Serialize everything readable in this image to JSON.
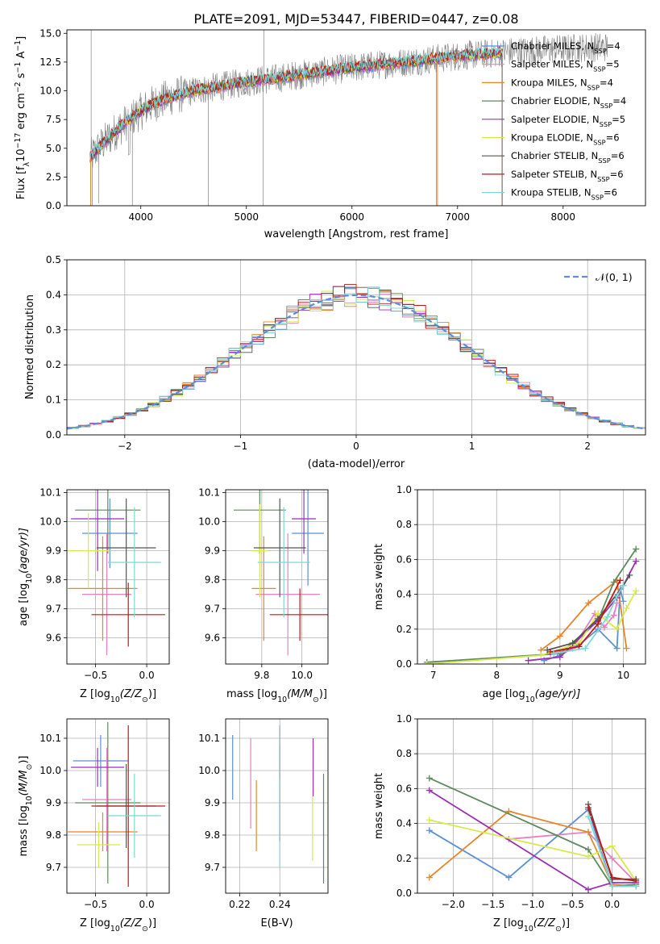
{
  "figure_title": "PLATE=2091, MJD=53447, FIBERID=0447, z=0.08",
  "colors": {
    "s0": "#5b8fd6",
    "s1": "#e87fbf",
    "s2": "#e8852a",
    "s3": "#5e8a5e",
    "s4": "#9b30b8",
    "s5": "#d6ea4a",
    "s6": "#555555",
    "s7": "#c01818",
    "s8": "#7ed8d8",
    "data": "#808080",
    "normal": "#5b8fd6"
  },
  "chart_data": [
    {
      "type": "line",
      "id": "spectrum",
      "xlabel": "wavelength [Angstrom, rest frame]",
      "ylabel": "Flux [f",
      "ylabel_parts": [
        "Flux [f",
        "λ",
        "10",
        "−17",
        " erg cm",
        "−2",
        " s",
        "−1",
        " A",
        "−1",
        "]"
      ],
      "xlim": [
        3300,
        8780
      ],
      "ylim": [
        0,
        15.3
      ],
      "xticks": [
        4000,
        5000,
        6000,
        7000,
        8000
      ],
      "yticks": [
        0.0,
        2.5,
        5.0,
        7.5,
        10.0,
        12.5,
        15.0
      ],
      "ytick_labels": [
        "0.0",
        "2.5",
        "5.0",
        "7.5",
        "10.0",
        "12.5",
        "15.0"
      ],
      "legend_placement": "upper-right",
      "legend": [
        {
          "prefix": "Chabrier MILES, N",
          "sub": "SSP",
          "suffix": "=4",
          "color_key": "s0"
        },
        {
          "prefix": "Salpeter MILES, N",
          "sub": "SSP",
          "suffix": "=5",
          "color_key": "s1"
        },
        {
          "prefix": "Kroupa MILES, N",
          "sub": "SSP",
          "suffix": "=4",
          "color_key": "s2"
        },
        {
          "prefix": "Chabrier ELODIE, N",
          "sub": "SSP",
          "suffix": "=4",
          "color_key": "s3"
        },
        {
          "prefix": "Salpeter ELODIE, N",
          "sub": "SSP",
          "suffix": "=5",
          "color_key": "s4"
        },
        {
          "prefix": "Kroupa ELODIE, N",
          "sub": "SSP",
          "suffix": "=6",
          "color_key": "s5"
        },
        {
          "prefix": "Chabrier STELIB, N",
          "sub": "SSP",
          "suffix": "=6",
          "color_key": "s6"
        },
        {
          "prefix": "Salpeter STELIB, N",
          "sub": "SSP",
          "suffix": "=6",
          "color_key": "s7"
        },
        {
          "prefix": "Kroupa STELIB, N",
          "sub": "SSP",
          "suffix": "=6",
          "color_key": "s8"
        }
      ],
      "continuum_x": [
        3520,
        3650,
        3800,
        3950,
        4100,
        4300,
        4500,
        4700,
        4900,
        5100,
        5300,
        5500,
        5700,
        5900,
        6100,
        6300,
        6500,
        6700,
        6900,
        7100,
        7300,
        7500,
        7700,
        7900,
        8100,
        8300
      ],
      "continuum_y": [
        4.2,
        5.5,
        6.8,
        7.9,
        8.8,
        9.5,
        10.0,
        10.3,
        10.6,
        10.9,
        11.1,
        11.4,
        11.6,
        11.9,
        12.1,
        12.3,
        12.5,
        12.7,
        12.9,
        13.1,
        13.2,
        13.4,
        13.5,
        13.6,
        13.7,
        13.8
      ]
    },
    {
      "type": "line",
      "id": "residuals",
      "xlabel": "(data-model)/error",
      "ylabel": "Normed distribution",
      "xlim": [
        -2.5,
        2.5
      ],
      "ylim": [
        0,
        0.5
      ],
      "xticks": [
        -2,
        -1,
        0,
        1,
        2
      ],
      "xtick_labels": [
        "−2",
        "−1",
        "0",
        "1",
        "2"
      ],
      "yticks": [
        0.0,
        0.1,
        0.2,
        0.3,
        0.4,
        0.5
      ],
      "ytick_labels": [
        "0.0",
        "0.1",
        "0.2",
        "0.3",
        "0.4",
        "0.5"
      ],
      "grid": true,
      "legend_placement": "upper-right",
      "legend_label": "𝒩(0, 1)"
    },
    {
      "type": "scatter",
      "id": "age-vs-Z",
      "xlabel": "Z [log",
      "xlabel_parts": [
        "Z [log",
        "10",
        "(Z/Z",
        "⊙",
        ")]"
      ],
      "ylabel_parts": [
        "age  [log",
        "10",
        "(age/yr)]"
      ],
      "xlim": [
        -0.78,
        0.22
      ],
      "ylim": [
        9.51,
        10.11
      ],
      "xticks": [
        -0.5,
        0.0
      ],
      "xtick_labels": [
        "−0.5",
        "0.0"
      ],
      "yticks": [
        9.6,
        9.7,
        9.8,
        9.9,
        10.0,
        10.1
      ],
      "ytick_labels": [
        "9.6",
        "9.7",
        "9.8",
        "9.9",
        "10.0",
        "10.1"
      ],
      "grid": true,
      "points": [
        {
          "c": "s0",
          "x": -0.36,
          "y": 9.96,
          "xe": 0.27,
          "ye": 0.12
        },
        {
          "c": "s1",
          "x": -0.39,
          "y": 9.75,
          "xe": 0.24,
          "ye": 0.21
        },
        {
          "c": "s2",
          "x": -0.43,
          "y": 9.77,
          "xe": 0.34,
          "ye": 0.18
        },
        {
          "c": "s3",
          "x": -0.38,
          "y": 10.04,
          "xe": 0.32,
          "ye": 0.15
        },
        {
          "c": "s4",
          "x": -0.48,
          "y": 10.01,
          "xe": 0.26,
          "ye": 0.18
        },
        {
          "c": "s5",
          "x": -0.57,
          "y": 9.9,
          "xe": 0.21,
          "ye": 0.13
        },
        {
          "c": "s6",
          "x": -0.2,
          "y": 9.91,
          "xe": 0.29,
          "ye": 0.17
        },
        {
          "c": "s7",
          "x": -0.18,
          "y": 9.68,
          "xe": 0.36,
          "ye": 0.11
        },
        {
          "c": "s8",
          "x": -0.12,
          "y": 9.86,
          "xe": 0.26,
          "ye": 0.19
        }
      ]
    },
    {
      "type": "scatter",
      "id": "age-vs-mass",
      "xlabel": "mass [log",
      "xlabel_parts": [
        "mass [log",
        "10",
        "(M/M",
        "⊙",
        ")]"
      ],
      "xlim": [
        9.62,
        10.13
      ],
      "ylim": [
        9.51,
        10.11
      ],
      "xticks": [
        9.8,
        10.0
      ],
      "xtick_labels": [
        "9.8",
        "10.0"
      ],
      "yticks": [
        9.6,
        9.7,
        9.8,
        9.9,
        10.0,
        10.1
      ],
      "ytick_labels": [
        "9.6",
        "9.7",
        "9.8",
        "9.9",
        "10.0",
        "10.1"
      ],
      "grid": true,
      "points": [
        {
          "c": "s0",
          "x": 10.03,
          "y": 9.96,
          "xe": 0.08,
          "ye": 0.18
        },
        {
          "c": "s1",
          "x": 9.93,
          "y": 9.75,
          "xe": 0.16,
          "ye": 0.21
        },
        {
          "c": "s2",
          "x": 9.81,
          "y": 9.77,
          "xe": 0.06,
          "ye": 0.18
        },
        {
          "c": "s3",
          "x": 9.79,
          "y": 10.04,
          "xe": 0.13,
          "ye": 0.15
        },
        {
          "c": "s4",
          "x": 10.01,
          "y": 10.01,
          "xe": 0.06,
          "ye": 0.12
        },
        {
          "c": "s5",
          "x": 9.79,
          "y": 9.9,
          "xe": 0.04,
          "ye": 0.16
        },
        {
          "c": "s6",
          "x": 9.89,
          "y": 9.91,
          "xe": 0.13,
          "ye": 0.17
        },
        {
          "c": "s7",
          "x": 9.99,
          "y": 9.68,
          "xe": 0.15,
          "ye": 0.09
        },
        {
          "c": "s8",
          "x": 9.91,
          "y": 9.86,
          "xe": 0.13,
          "ye": 0.19
        }
      ]
    },
    {
      "type": "line",
      "id": "massweight-vs-age",
      "xlabel_parts": [
        "age  [log",
        "10",
        "(age/yr)]"
      ],
      "ylabel": "mass weight",
      "xlim": [
        6.75,
        10.35
      ],
      "ylim": [
        0,
        1.0
      ],
      "xticks": [
        7,
        8,
        9,
        10
      ],
      "xtick_labels": [
        "7",
        "8",
        "9",
        "10"
      ],
      "yticks": [
        0.0,
        0.2,
        0.4,
        0.6,
        0.8,
        1.0
      ],
      "ytick_labels": [
        "0.0",
        "0.2",
        "0.4",
        "0.6",
        "0.8",
        "1.0"
      ],
      "grid": true,
      "series": [
        {
          "c": "s0",
          "x": [
            8.75,
            9.0,
            9.3,
            9.6,
            9.9,
            9.95,
            10.0
          ],
          "y": [
            0.02,
            0.05,
            0.11,
            0.2,
            0.09,
            0.43,
            0.36
          ]
        },
        {
          "c": "s1",
          "x": [
            8.85,
            9.2,
            9.55,
            9.7,
            9.85,
            9.9
          ],
          "y": [
            0.06,
            0.09,
            0.29,
            0.21,
            0.28,
            0.35
          ]
        },
        {
          "c": "s2",
          "x": [
            8.7,
            9.0,
            9.45,
            9.9,
            10.05
          ],
          "y": [
            0.08,
            0.16,
            0.35,
            0.48,
            0.09
          ]
        },
        {
          "c": "s3",
          "x": [
            6.9,
            9.0,
            9.6,
            9.85,
            10.2
          ],
          "y": [
            0.01,
            0.06,
            0.25,
            0.47,
            0.66
          ]
        },
        {
          "c": "s4",
          "x": [
            8.5,
            9.0,
            9.6,
            9.9,
            10.2
          ],
          "y": [
            0.02,
            0.04,
            0.25,
            0.38,
            0.59
          ]
        },
        {
          "c": "s5",
          "x": [
            6.9,
            8.7,
            9.3,
            9.6,
            9.9,
            10.05,
            10.2
          ],
          "y": [
            0.0,
            0.05,
            0.12,
            0.29,
            0.2,
            0.32,
            0.42
          ]
        },
        {
          "c": "s6",
          "x": [
            8.8,
            9.2,
            9.6,
            10.0,
            10.1
          ],
          "y": [
            0.08,
            0.12,
            0.26,
            0.45,
            0.51
          ]
        },
        {
          "c": "s7",
          "x": [
            8.85,
            9.3,
            9.6,
            9.95
          ],
          "y": [
            0.07,
            0.1,
            0.23,
            0.48
          ]
        },
        {
          "c": "s8",
          "x": [
            8.9,
            9.4,
            9.75,
            9.9,
            10.0
          ],
          "y": [
            0.06,
            0.09,
            0.27,
            0.39,
            0.45
          ]
        }
      ]
    },
    {
      "type": "scatter",
      "id": "mass-vs-Z",
      "xlabel_parts": [
        "Z [log",
        "10",
        "(Z/Z",
        "⊙",
        ")]"
      ],
      "ylabel_parts": [
        "mass [log",
        "10",
        "(M/M",
        "⊙",
        ")]"
      ],
      "xlim": [
        -0.78,
        0.22
      ],
      "ylim": [
        9.62,
        10.16
      ],
      "xticks": [
        -0.5,
        0.0
      ],
      "xtick_labels": [
        "−0.5",
        "0.0"
      ],
      "yticks": [
        9.7,
        9.8,
        9.9,
        10.0,
        10.1
      ],
      "ytick_labels": [
        "9.7",
        "9.8",
        "9.9",
        "10.0",
        "10.1"
      ],
      "grid": true,
      "points": [
        {
          "c": "s0",
          "x": -0.45,
          "y": 10.03,
          "xe": 0.27,
          "ye": 0.08
        },
        {
          "c": "s1",
          "x": -0.39,
          "y": 9.91,
          "xe": 0.24,
          "ye": 0.16
        },
        {
          "c": "s2",
          "x": -0.43,
          "y": 9.81,
          "xe": 0.34,
          "ye": 0.06
        },
        {
          "c": "s3",
          "x": -0.38,
          "y": 9.9,
          "xe": 0.32,
          "ye": 0.25
        },
        {
          "c": "s4",
          "x": -0.48,
          "y": 10.01,
          "xe": 0.26,
          "ye": 0.06
        },
        {
          "c": "s5",
          "x": -0.47,
          "y": 9.77,
          "xe": 0.21,
          "ye": 0.07
        },
        {
          "c": "s6",
          "x": -0.2,
          "y": 9.89,
          "xe": 0.29,
          "ye": 0.13
        },
        {
          "c": "s7",
          "x": -0.18,
          "y": 9.89,
          "xe": 0.36,
          "ye": 0.25
        },
        {
          "c": "s8",
          "x": -0.12,
          "y": 9.86,
          "xe": 0.26,
          "ye": 0.13
        }
      ]
    },
    {
      "type": "scatter",
      "id": "mass-vs-ebv",
      "xlabel": "E(B-V)",
      "xlim": [
        0.213,
        0.264
      ],
      "ylim": [
        9.62,
        10.16
      ],
      "xticks": [
        0.22,
        0.24
      ],
      "xtick_labels": [
        "0.22",
        "0.24"
      ],
      "yticks": [
        9.7,
        9.8,
        9.9,
        10.0,
        10.1
      ],
      "ytick_labels": [
        "9.7",
        "9.8",
        "9.9",
        "10.0",
        "10.1"
      ],
      "grid": true,
      "points": [
        {
          "c": "s0",
          "x": 0.2165,
          "y": 10.01,
          "ye": 0.1
        },
        {
          "c": "s1",
          "x": 0.2255,
          "y": 9.96,
          "ye": 0.14
        },
        {
          "c": "s2",
          "x": 0.2283,
          "y": 9.86,
          "ye": 0.11
        },
        {
          "c": "s3",
          "x": 0.2618,
          "y": 9.82,
          "ye": 0.17
        },
        {
          "c": "s4",
          "x": 0.2566,
          "y": 10.01,
          "ye": 0.09
        },
        {
          "c": "s5",
          "x": 0.2563,
          "y": 9.82,
          "ye": 0.1
        },
        {
          "c": "s6",
          "x": 0.24,
          "y": 9.93,
          "ye": 0.15
        },
        {
          "c": "s7",
          "x": 0.24,
          "y": 10.06,
          "ye": 0.08
        },
        {
          "c": "s8",
          "x": 0.24,
          "y": 9.92,
          "ye": 0.22
        }
      ]
    },
    {
      "type": "line",
      "id": "massweight-vs-Z",
      "xlabel_parts": [
        "Z [log",
        "10",
        "(Z/Z",
        "⊙",
        ")]"
      ],
      "ylabel": "mass weight",
      "xlim": [
        -2.45,
        0.42
      ],
      "ylim": [
        0,
        1.0
      ],
      "xticks": [
        -2.0,
        -1.5,
        -1.0,
        -0.5,
        0.0
      ],
      "xtick_labels": [
        "−2.0",
        "−1.5",
        "−1.0",
        "−0.5",
        "0.0"
      ],
      "yticks": [
        0.0,
        0.2,
        0.4,
        0.6,
        0.8,
        1.0
      ],
      "ytick_labels": [
        "0.0",
        "0.2",
        "0.4",
        "0.6",
        "0.8",
        "1.0"
      ],
      "grid": true,
      "series": [
        {
          "c": "s0",
          "x": [
            -2.3,
            -1.3,
            -0.3,
            0.0,
            0.3
          ],
          "y": [
            0.36,
            0.09,
            0.48,
            0.04,
            0.04
          ]
        },
        {
          "c": "s1",
          "x": [
            -1.3,
            -0.3,
            0.0,
            0.3
          ],
          "y": [
            0.31,
            0.35,
            0.2,
            0.06
          ]
        },
        {
          "c": "s2",
          "x": [
            -2.3,
            -1.3,
            -0.3,
            0.0,
            0.3
          ],
          "y": [
            0.09,
            0.47,
            0.35,
            0.05,
            0.04
          ]
        },
        {
          "c": "s3",
          "x": [
            -2.3,
            -0.3,
            0.0,
            0.3
          ],
          "y": [
            0.66,
            0.25,
            0.04,
            0.05
          ]
        },
        {
          "c": "s4",
          "x": [
            -2.3,
            -0.3,
            0.0,
            0.3
          ],
          "y": [
            0.59,
            0.02,
            0.06,
            0.06
          ]
        },
        {
          "c": "s5",
          "x": [
            -2.3,
            -0.3,
            0.0,
            0.3
          ],
          "y": [
            0.42,
            0.21,
            0.27,
            0.07
          ]
        },
        {
          "c": "s6",
          "x": [
            -0.3,
            0.0,
            0.3
          ],
          "y": [
            0.51,
            0.08,
            0.08
          ]
        },
        {
          "c": "s7",
          "x": [
            -0.3,
            0.0,
            0.3
          ],
          "y": [
            0.49,
            0.09,
            0.07
          ]
        },
        {
          "c": "s8",
          "x": [
            -0.3,
            0.0,
            0.3
          ],
          "y": [
            0.44,
            0.04,
            0.04
          ]
        }
      ]
    }
  ]
}
